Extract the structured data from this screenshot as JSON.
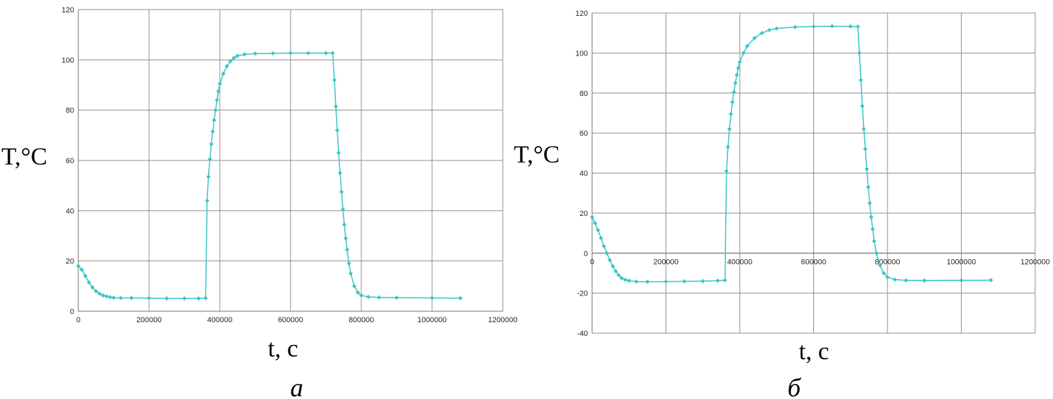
{
  "chart_data": [
    {
      "type": "scatter",
      "panel_label": "а",
      "title": "",
      "xlabel": "t, c",
      "ylabel": "T,°C",
      "xlim": [
        0,
        1200000
      ],
      "ylim": [
        0,
        120
      ],
      "xticks": [
        0,
        200000,
        400000,
        600000,
        800000,
        1000000,
        1200000
      ],
      "yticks": [
        0,
        20,
        40,
        60,
        80,
        100,
        120
      ],
      "grid": true,
      "series_color": "#3fc6c6",
      "series": [
        {
          "x": [
            0,
            10000,
            20000,
            30000,
            40000,
            50000,
            60000,
            70000,
            80000,
            90000,
            100000,
            120000,
            150000,
            200000,
            250000,
            300000,
            340000,
            360000,
            364000,
            368000,
            372000,
            376000,
            380000,
            384000,
            388000,
            392000,
            396000,
            400000,
            410000,
            420000,
            430000,
            440000,
            450000,
            470000,
            500000,
            550000,
            600000,
            650000,
            700000,
            719000,
            724000,
            728000,
            732000,
            736000,
            740000,
            744000,
            748000,
            752000,
            756000,
            760000,
            765000,
            770000,
            780000,
            790000,
            800000,
            820000,
            850000,
            900000,
            1000000,
            1080000
          ],
          "y": [
            18,
            16.5,
            14,
            11.5,
            9.5,
            8,
            7,
            6.3,
            5.9,
            5.6,
            5.4,
            5.3,
            5.3,
            5.2,
            5.1,
            5.1,
            5.1,
            5.2,
            44,
            53.5,
            60.5,
            66.5,
            71.5,
            76,
            80,
            84,
            87.5,
            90.5,
            94.5,
            97.5,
            99.5,
            100.8,
            101.6,
            102.2,
            102.5,
            102.6,
            102.7,
            102.7,
            102.7,
            102.7,
            92,
            81.5,
            72,
            63,
            55,
            47.5,
            40.5,
            34.5,
            29,
            24.5,
            19,
            15,
            10,
            7.5,
            6.3,
            5.7,
            5.5,
            5.4,
            5.3,
            5.2
          ]
        }
      ]
    },
    {
      "type": "scatter",
      "panel_label": "б",
      "title": "",
      "xlabel": "t, c",
      "ylabel": "T,°C",
      "xlim": [
        0,
        1200000
      ],
      "ylim": [
        -40,
        120
      ],
      "xticks": [
        0,
        200000,
        400000,
        600000,
        800000,
        1000000,
        1200000
      ],
      "yticks": [
        -40,
        -20,
        0,
        20,
        40,
        60,
        80,
        100,
        120
      ],
      "grid": true,
      "series_color": "#3fc6c6",
      "series": [
        {
          "x": [
            0,
            8000,
            16000,
            24000,
            32000,
            40000,
            48000,
            56000,
            64000,
            72000,
            80000,
            90000,
            100000,
            120000,
            150000,
            200000,
            250000,
            300000,
            340000,
            360000,
            364000,
            368000,
            372000,
            376000,
            380000,
            384000,
            388000,
            392000,
            396000,
            400000,
            410000,
            420000,
            440000,
            460000,
            480000,
            500000,
            550000,
            600000,
            650000,
            700000,
            720000,
            724000,
            728000,
            732000,
            736000,
            740000,
            744000,
            748000,
            752000,
            756000,
            760000,
            764000,
            770000,
            780000,
            790000,
            800000,
            820000,
            850000,
            900000,
            1000000,
            1080000
          ],
          "y": [
            18,
            15,
            11.5,
            7.5,
            3.5,
            0,
            -3.5,
            -6.5,
            -9,
            -11,
            -12.5,
            -13.3,
            -13.8,
            -14.2,
            -14.3,
            -14.2,
            -14.1,
            -14,
            -13.8,
            -13.5,
            41,
            53,
            62,
            69.5,
            75.5,
            80.5,
            85,
            89,
            92.5,
            95.5,
            100,
            103.5,
            107.5,
            110,
            111.5,
            112.3,
            113,
            113.3,
            113.4,
            113.3,
            113.2,
            100,
            86.5,
            73.5,
            62,
            52,
            42,
            33,
            25,
            18,
            12,
            6,
            0,
            -6,
            -10,
            -12,
            -13.2,
            -13.6,
            -13.7,
            -13.6,
            -13.5
          ]
        }
      ]
    }
  ]
}
